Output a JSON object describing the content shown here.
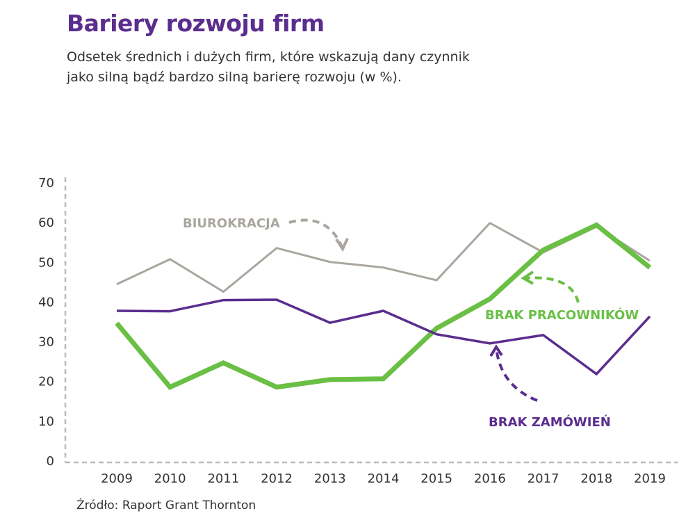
{
  "chart_data": {
    "type": "line",
    "title": "Bariery rozwoju firm",
    "subtitle_line1": "Odsetek średnich i dużych firm, które wskazują dany czynnik",
    "subtitle_line2": "jako silną bądź bardzo silną barierę rozwoju (w %).",
    "source": "Źródło: Raport Grant Thornton",
    "x": [
      "2009",
      "2010",
      "2011",
      "2012",
      "2013",
      "2014",
      "2015",
      "2016",
      "2017",
      "2018",
      "2019"
    ],
    "ylim": [
      0,
      70
    ],
    "yticks": [
      "0",
      "10",
      "20",
      "30",
      "40",
      "50",
      "60",
      "70"
    ],
    "grid": false,
    "series": [
      {
        "name": "BIUROKRACJA",
        "color": "#aaa69f",
        "values": [
          44.5,
          50.8,
          42.6,
          53.6,
          50.1,
          48.7,
          45.5,
          59.9,
          52.5,
          59.0,
          50.4
        ]
      },
      {
        "name": "BRAK PRACOWNIKÓW",
        "color": "#6abf45",
        "values": [
          34.7,
          18.6,
          24.7,
          18.6,
          20.5,
          20.7,
          33.4,
          40.8,
          53.1,
          59.4,
          48.7
        ]
      },
      {
        "name": "BRAK ZAMÓWIEŃ",
        "color": "#5b2d8e",
        "values": [
          37.8,
          37.7,
          40.5,
          40.6,
          34.8,
          37.8,
          31.9,
          29.6,
          31.7,
          21.9,
          36.4
        ]
      }
    ]
  }
}
